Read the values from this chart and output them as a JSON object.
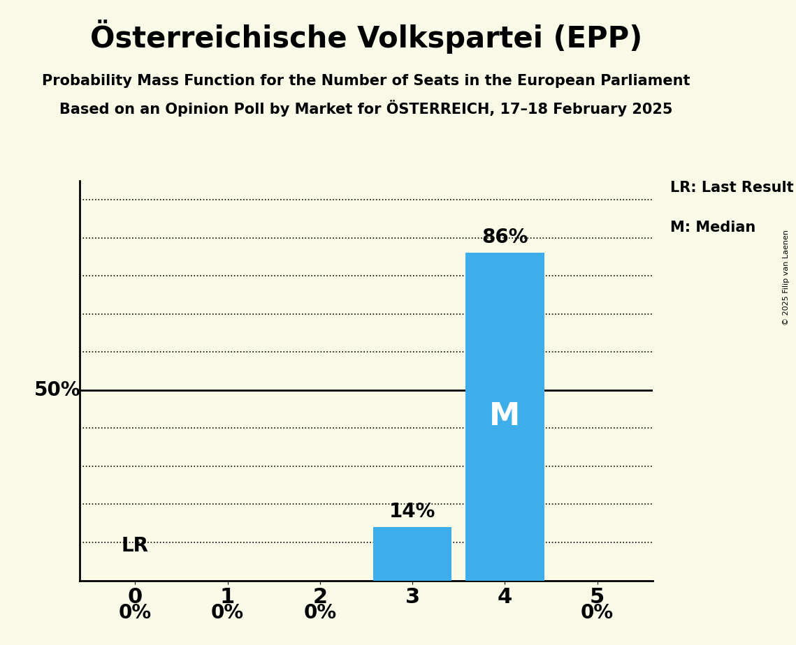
{
  "title": "Österreichische Volkspartei (EPP)",
  "subtitle1": "Probability Mass Function for the Number of Seats in the European Parliament",
  "subtitle2": "Based on an Opinion Poll by Market for ÖSTERREICH, 17–18 February 2025",
  "copyright": "© 2025 Filip van Laenen",
  "seats": [
    0,
    1,
    2,
    3,
    4,
    5
  ],
  "probabilities": [
    0,
    0,
    0,
    14,
    86,
    0
  ],
  "bar_color": "#3daee9",
  "background_color": "#fafae8",
  "ylim": [
    0,
    100
  ],
  "fifty_pct_line": 50,
  "lr_seat": 0,
  "median_seat": 4,
  "bar_labels": [
    "0%",
    "0%",
    "0%",
    "14%",
    "86%",
    "0%"
  ],
  "legend_lr": "LR: Last Result",
  "legend_m": "M: Median",
  "title_fontsize": 30,
  "subtitle_fontsize": 15,
  "label_fontsize": 20,
  "tick_fontsize": 22,
  "copyright_fontsize": 8,
  "dotted_grid_values": [
    10,
    20,
    30,
    40,
    60,
    70,
    80,
    90,
    100
  ]
}
